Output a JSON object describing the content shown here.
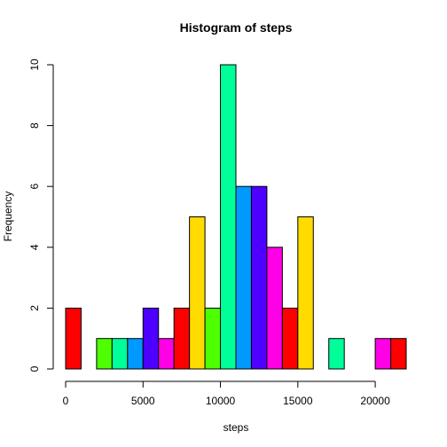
{
  "chart_data": {
    "type": "bar",
    "title": "Histogram of steps",
    "xlabel": "steps",
    "ylabel": "Frequency",
    "xlim": [
      0,
      22000
    ],
    "ylim": [
      0,
      10
    ],
    "xticks": [
      0,
      5000,
      10000,
      15000,
      20000
    ],
    "xtick_labels": [
      "0",
      "5000",
      "10000",
      "15000",
      "20000"
    ],
    "yticks": [
      0,
      2,
      4,
      6,
      8,
      10
    ],
    "ytick_labels": [
      "0",
      "2",
      "4",
      "6",
      "8",
      "10"
    ],
    "bin_width": 1000,
    "bin_starts": [
      0,
      1000,
      2000,
      3000,
      4000,
      5000,
      6000,
      7000,
      8000,
      9000,
      10000,
      11000,
      12000,
      13000,
      14000,
      15000,
      16000,
      17000,
      18000,
      19000,
      20000,
      21000
    ],
    "values": [
      2,
      0,
      1,
      1,
      1,
      2,
      1,
      2,
      5,
      2,
      10,
      6,
      6,
      4,
      2,
      5,
      0,
      1,
      0,
      0,
      1,
      1
    ],
    "colors": [
      "#FF0000",
      "#FF0000",
      "#4DFF00",
      "#00FF99",
      "#0099FF",
      "#4D00FF",
      "#FF00E6",
      "#FF0000",
      "#FFDB00",
      "#4DFF00",
      "#00FF99",
      "#0099FF",
      "#4D00FF",
      "#FF00E6",
      "#FF0000",
      "#FFDB00",
      "#4DFF00",
      "#00FF99",
      "#0099FF",
      "#4D00FF",
      "#FF00E6",
      "#FF0000"
    ],
    "grid": false,
    "legend": "none"
  }
}
